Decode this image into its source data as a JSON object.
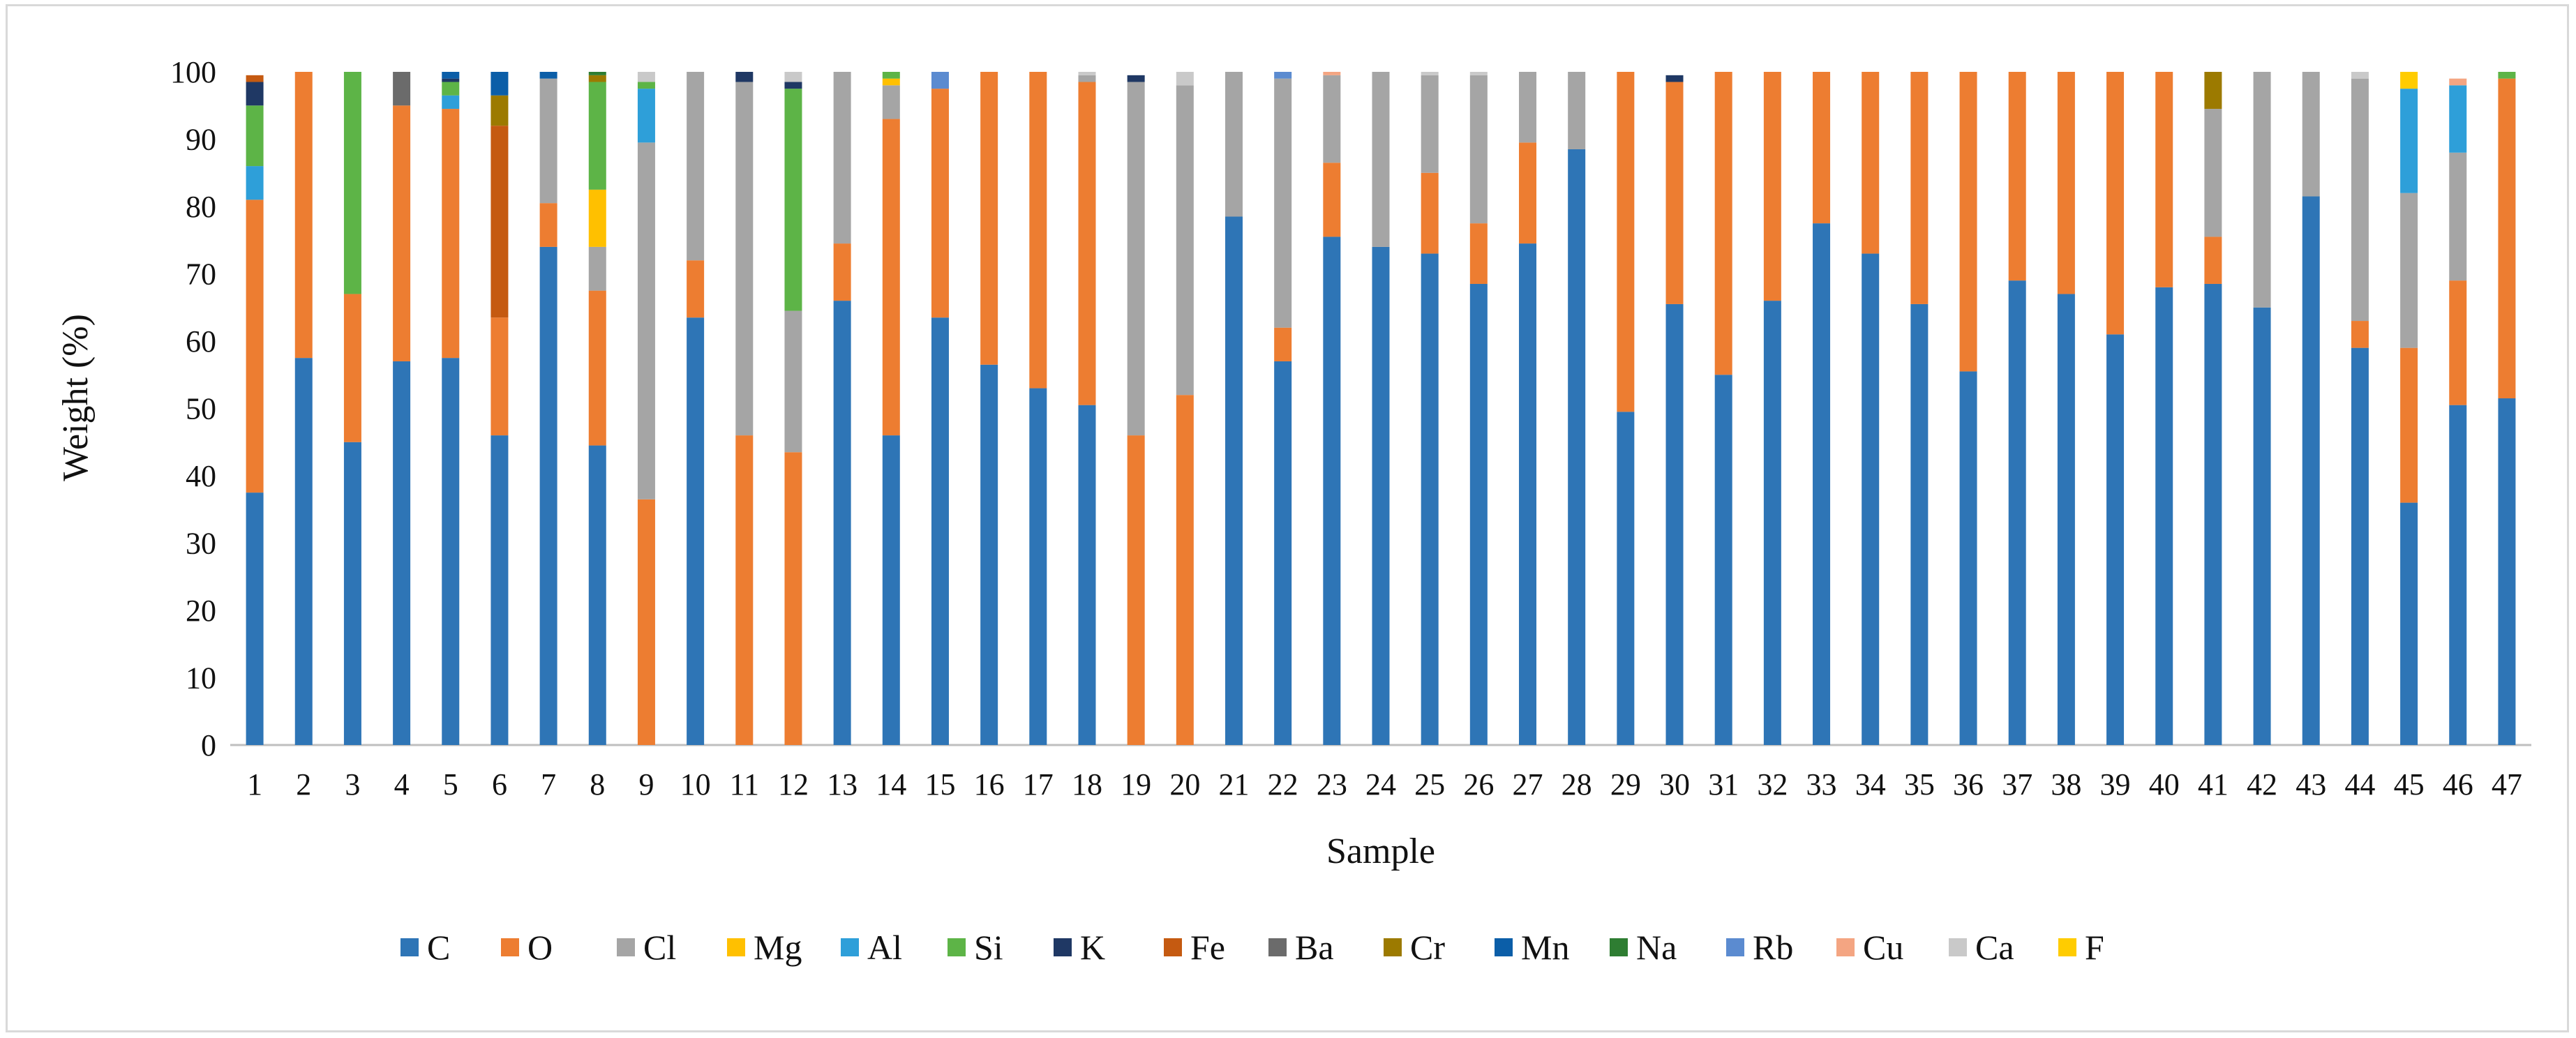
{
  "chart_data": {
    "type": "bar",
    "stacked": true,
    "title": "",
    "xlabel": "Sample",
    "ylabel": "Weight (%)",
    "ylim": [
      0,
      100
    ],
    "yticks": [
      "0",
      "10",
      "20",
      "30",
      "40",
      "50",
      "60",
      "70",
      "80",
      "90",
      "100"
    ],
    "grid": false,
    "legend_position": "bottom",
    "categories": [
      "1",
      "2",
      "3",
      "4",
      "5",
      "6",
      "7",
      "8",
      "9",
      "10",
      "11",
      "12",
      "13",
      "14",
      "15",
      "16",
      "17",
      "18",
      "19",
      "20",
      "21",
      "22",
      "23",
      "24",
      "25",
      "26",
      "27",
      "28",
      "29",
      "30",
      "31",
      "32",
      "33",
      "34",
      "35",
      "36",
      "37",
      "38",
      "39",
      "40",
      "41",
      "42",
      "43",
      "44",
      "45",
      "46",
      "47"
    ],
    "series": [
      {
        "name": "C",
        "color": "#2e75b6",
        "values": [
          37.5,
          57.5,
          45,
          57,
          57.5,
          46,
          74,
          44.5,
          0,
          63.5,
          0,
          0,
          66,
          46,
          63.5,
          56.5,
          53,
          50.5,
          0,
          0,
          78.5,
          57,
          75.5,
          74,
          73,
          68.5,
          74.5,
          88.5,
          49.5,
          65.5,
          55,
          66,
          77.5,
          73,
          65.5,
          55.5,
          69,
          67,
          61,
          68,
          68.5,
          65,
          81.5,
          59,
          36,
          50.5,
          51.5
        ]
      },
      {
        "name": "O",
        "color": "#ed7d31",
        "values": [
          43.5,
          42.5,
          22,
          38,
          37,
          17.5,
          6.5,
          23,
          36.5,
          8.5,
          46,
          43.5,
          8.5,
          47,
          34,
          43.5,
          47,
          48,
          46,
          52,
          0,
          5,
          11,
          0,
          12,
          9,
          15,
          0,
          50.5,
          33,
          45,
          34,
          22.5,
          27,
          34.5,
          44.5,
          31,
          33,
          39,
          32,
          7,
          0,
          0,
          4,
          23,
          18.5,
          47.5
        ]
      },
      {
        "name": "Cl",
        "color": "#a5a5a5",
        "values": [
          0,
          0,
          0,
          0,
          0,
          0,
          18.5,
          6.5,
          53,
          28,
          52.5,
          21,
          25.5,
          5,
          0,
          0,
          0,
          1,
          52.5,
          46,
          21.5,
          37,
          13,
          26,
          14.5,
          22,
          10.5,
          11.5,
          0,
          0,
          0,
          0,
          0,
          0,
          0,
          0,
          0,
          0,
          0,
          0,
          19,
          35,
          18.5,
          36,
          23,
          19,
          0
        ]
      },
      {
        "name": "Mg",
        "color": "#ffc000",
        "values": [
          0,
          0,
          0,
          0,
          0,
          0,
          0,
          8.5,
          0,
          0,
          0,
          0,
          0,
          1,
          0,
          0,
          0,
          0,
          0,
          0,
          0,
          0,
          0,
          0,
          0,
          0,
          0,
          0,
          0,
          0,
          0,
          0,
          0,
          0,
          0,
          0,
          0,
          0,
          0,
          0,
          0,
          0,
          0,
          0,
          0,
          0,
          0
        ]
      },
      {
        "name": "Al",
        "color": "#2e9fd9",
        "values": [
          5,
          0,
          0,
          0,
          2,
          0,
          0,
          0,
          8,
          0,
          0,
          0,
          0,
          0,
          0,
          0,
          0,
          0,
          0,
          0,
          0,
          0,
          0,
          0,
          0,
          0,
          0,
          0,
          0,
          0,
          0,
          0,
          0,
          0,
          0,
          0,
          0,
          0,
          0,
          0,
          0,
          0,
          0,
          0,
          15.5,
          10,
          0
        ]
      },
      {
        "name": "Si",
        "color": "#5db447",
        "values": [
          9,
          0,
          33,
          0,
          2,
          0,
          0,
          16,
          1,
          0,
          0,
          33,
          0,
          1,
          0,
          0,
          0,
          0,
          0,
          0,
          0,
          0,
          0,
          0,
          0,
          0,
          0,
          0,
          0,
          0,
          0,
          0,
          0,
          0,
          0,
          0,
          0,
          0,
          0,
          0,
          0,
          0,
          0,
          0,
          0,
          0,
          1
        ]
      },
      {
        "name": "K",
        "color": "#1f3864",
        "values": [
          3.5,
          0,
          0,
          0,
          0.5,
          0,
          0,
          0,
          0,
          0,
          1.5,
          1,
          0,
          0,
          0,
          0,
          0,
          0,
          1,
          0,
          0,
          0,
          0,
          0,
          0,
          0,
          0,
          0,
          0,
          1,
          0,
          0,
          0,
          0,
          0,
          0,
          0,
          0,
          0,
          0,
          0,
          0,
          0,
          0,
          0,
          0,
          0
        ]
      },
      {
        "name": "Fe",
        "color": "#c55a11",
        "values": [
          1,
          0,
          0,
          0,
          0,
          28.5,
          0,
          0,
          0,
          0,
          0,
          0,
          0,
          0,
          0,
          0,
          0,
          0,
          0,
          0,
          0,
          0,
          0,
          0,
          0,
          0,
          0,
          0,
          0,
          0,
          0,
          0,
          0,
          0,
          0,
          0,
          0,
          0,
          0,
          0,
          0,
          0,
          0,
          0,
          0,
          0,
          0
        ]
      },
      {
        "name": "Ba",
        "color": "#6b6b6b",
        "values": [
          0,
          0,
          0,
          5,
          0,
          0,
          0,
          0,
          0,
          0,
          0,
          0,
          0,
          0,
          0,
          0,
          0,
          0,
          0,
          0,
          0,
          0,
          0,
          0,
          0,
          0,
          0,
          0,
          0,
          0,
          0,
          0,
          0,
          0,
          0,
          0,
          0,
          0,
          0,
          0,
          0,
          0,
          0,
          0,
          0,
          0,
          0
        ]
      },
      {
        "name": "Cr",
        "color": "#9c7a00",
        "values": [
          0,
          0,
          0,
          0,
          0,
          4.5,
          0,
          1,
          0,
          0,
          0,
          0,
          0,
          0,
          0,
          0,
          0,
          0,
          0,
          0,
          0,
          0,
          0,
          0,
          0,
          0,
          0,
          0,
          0,
          0,
          0,
          0,
          0,
          0,
          0,
          0,
          0,
          0,
          0,
          0,
          5.5,
          0,
          0,
          0,
          0,
          0,
          0
        ]
      },
      {
        "name": "Mn",
        "color": "#0b5ea8",
        "values": [
          0,
          0,
          0,
          0,
          1,
          3.5,
          1,
          0,
          0,
          0,
          0,
          0,
          0,
          0,
          0,
          0,
          0,
          0,
          0,
          0,
          0,
          0,
          0,
          0,
          0,
          0,
          0,
          0,
          0,
          0,
          0,
          0,
          0,
          0,
          0,
          0,
          0,
          0,
          0,
          0,
          0,
          0,
          0,
          0,
          0,
          0,
          0
        ]
      },
      {
        "name": "Na",
        "color": "#2e7d32",
        "values": [
          0,
          0,
          0,
          0,
          0,
          0,
          0,
          0.5,
          0,
          0,
          0,
          0,
          0,
          0,
          0,
          0,
          0,
          0,
          0,
          0,
          0,
          0,
          0,
          0,
          0,
          0,
          0,
          0,
          0,
          0,
          0,
          0,
          0,
          0,
          0,
          0,
          0,
          0,
          0,
          0,
          0,
          0,
          0,
          0,
          0,
          0,
          0
        ]
      },
      {
        "name": "Rb",
        "color": "#5b8bd0",
        "values": [
          0,
          0,
          0,
          0,
          0,
          0,
          0,
          0,
          0,
          0,
          0,
          0,
          0,
          0,
          2.5,
          0,
          0,
          0,
          0,
          0,
          0,
          1,
          0,
          0,
          0,
          0,
          0,
          0,
          0,
          0,
          0,
          0,
          0,
          0,
          0,
          0,
          0,
          0,
          0,
          0,
          0,
          0,
          0,
          0,
          0,
          0,
          0
        ]
      },
      {
        "name": "Cu",
        "color": "#f4a582",
        "values": [
          0,
          0,
          0,
          0,
          0,
          0,
          0,
          0,
          0,
          0,
          0,
          0,
          0,
          0,
          0,
          0,
          0,
          0,
          0,
          0,
          0,
          0,
          0.5,
          0,
          0,
          0,
          0,
          0,
          0,
          0,
          0,
          0,
          0,
          0,
          0,
          0,
          0,
          0,
          0,
          0,
          0,
          0,
          0,
          0,
          0,
          1,
          0
        ]
      },
      {
        "name": "Ca",
        "color": "#c9c9c9",
        "values": [
          0,
          0,
          0,
          0,
          0,
          0,
          0,
          0,
          1.5,
          0,
          0,
          1.5,
          0,
          0,
          0,
          0,
          0,
          0.5,
          0,
          2,
          0,
          0,
          0,
          0,
          0.5,
          0.5,
          0,
          0,
          0,
          0,
          0,
          0,
          0,
          0,
          0,
          0,
          0,
          0,
          0,
          0,
          0,
          0,
          0,
          1,
          0,
          0,
          0
        ]
      },
      {
        "name": "F",
        "color": "#ffcc00",
        "values": [
          0,
          0,
          0,
          0,
          0,
          0,
          0,
          0,
          0,
          0,
          0,
          0,
          0,
          0,
          0,
          0,
          0,
          0,
          0,
          0,
          0,
          0,
          0,
          0,
          0,
          0,
          0,
          0,
          0,
          0,
          0,
          0,
          0,
          0,
          0,
          0,
          0,
          0,
          0,
          0,
          0,
          0,
          0,
          0,
          2.5,
          0,
          0
        ]
      }
    ]
  }
}
